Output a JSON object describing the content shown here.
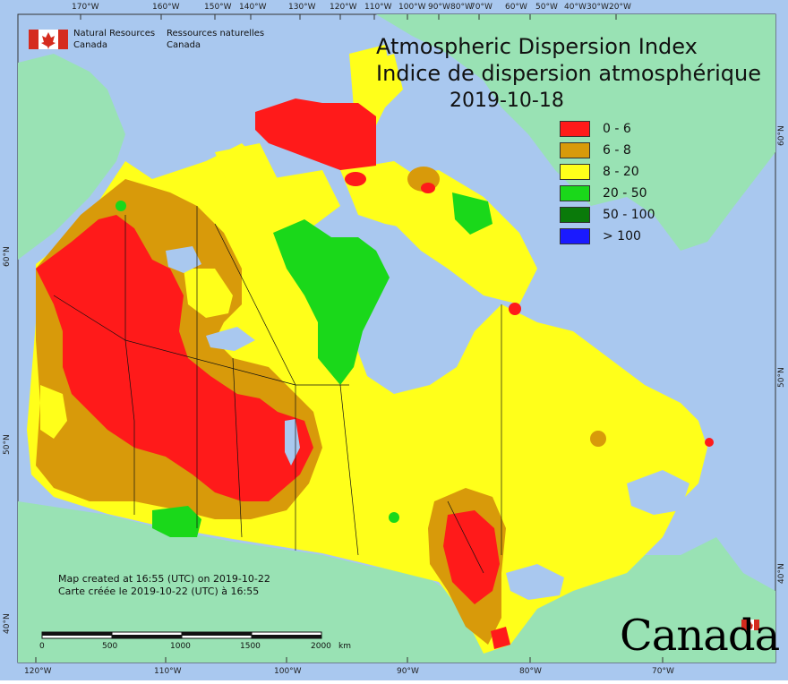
{
  "title": {
    "en": "Atmospheric Dispersion Index",
    "fr": "Indice de dispersion atmosphérique",
    "date": "2019-10-18"
  },
  "agency": {
    "en_line1": "Natural Resources",
    "en_line2": "Canada",
    "fr_line1": "Ressources naturelles",
    "fr_line2": "Canada"
  },
  "legend": [
    {
      "label": "0 - 6",
      "color": "#ff1a1a"
    },
    {
      "label": "6 - 8",
      "color": "#d89a0a"
    },
    {
      "label": "8 - 20",
      "color": "#ffff1a"
    },
    {
      "label": "20 - 50",
      "color": "#1ad81a"
    },
    {
      "label": "50 - 100",
      "color": "#0a7a0a"
    },
    {
      "label": "> 100",
      "color": "#1a1aff"
    }
  ],
  "credit": {
    "line1": "Map created at 16:55 (UTC) on 2019-10-22",
    "line2": "Carte créée le 2019-10-22 (UTC) à 16:55"
  },
  "scale": {
    "ticks": [
      "0",
      "500",
      "1000",
      "1500",
      "2000"
    ],
    "unit": "km"
  },
  "axes": {
    "top": [
      "170°W",
      "160°W",
      "150°W",
      "140°W",
      "130°W",
      "120°W",
      "110°W",
      "100°W",
      "90°W",
      "80°W",
      "70°W",
      "60°W",
      "50°W",
      "40°W",
      "30°W",
      "20°W"
    ],
    "bottom": [
      "120°W",
      "110°W",
      "100°W",
      "90°W",
      "80°W",
      "70°W"
    ],
    "left": [
      "60°N",
      "50°N",
      "40°N"
    ],
    "right": [
      "60°N",
      "50°N",
      "40°N"
    ]
  },
  "wordmark": "Canada",
  "colors": {
    "ocean": "#a9c8ef",
    "foreign_land": "#99e2b4",
    "border": "#111111"
  }
}
